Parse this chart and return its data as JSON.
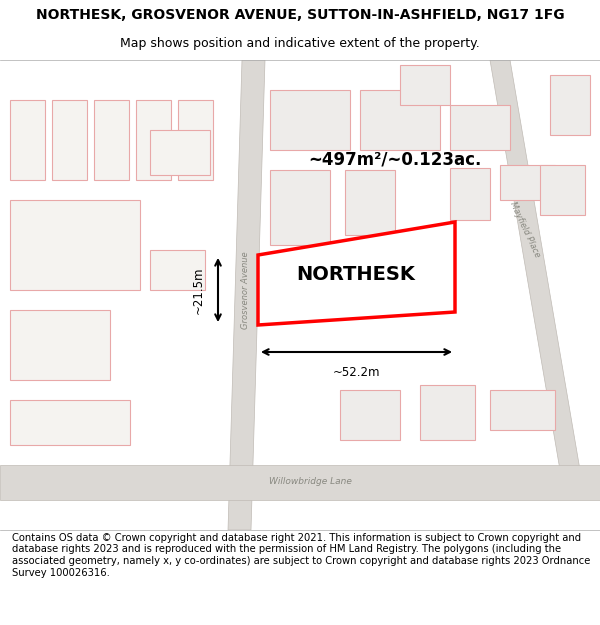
{
  "title_line1": "NORTHESK, GROSVENOR AVENUE, SUTTON-IN-ASHFIELD, NG17 1FG",
  "title_line2": "Map shows position and indicative extent of the property.",
  "footer_text": "Contains OS data © Crown copyright and database right 2021. This information is subject to Crown copyright and database rights 2023 and is reproduced with the permission of HM Land Registry. The polygons (including the associated geometry, namely x, y co-ordinates) are subject to Crown copyright and database rights 2023 Ordnance Survey 100026316.",
  "map_bg": "#f2f0ee",
  "road_fill": "#dbd8d4",
  "road_edge": "#c0bbb5",
  "building_fill_left": "#f5f3f0",
  "building_fill_right": "#eeecea",
  "building_outline": "#e8a8a8",
  "highlight_color": "#ff0000",
  "road_label_color": "#888880",
  "area_text": "~497m²/~0.123ac.",
  "width_text": "~52.2m",
  "height_text": "~21.5m",
  "property_name": "NORTHESK"
}
